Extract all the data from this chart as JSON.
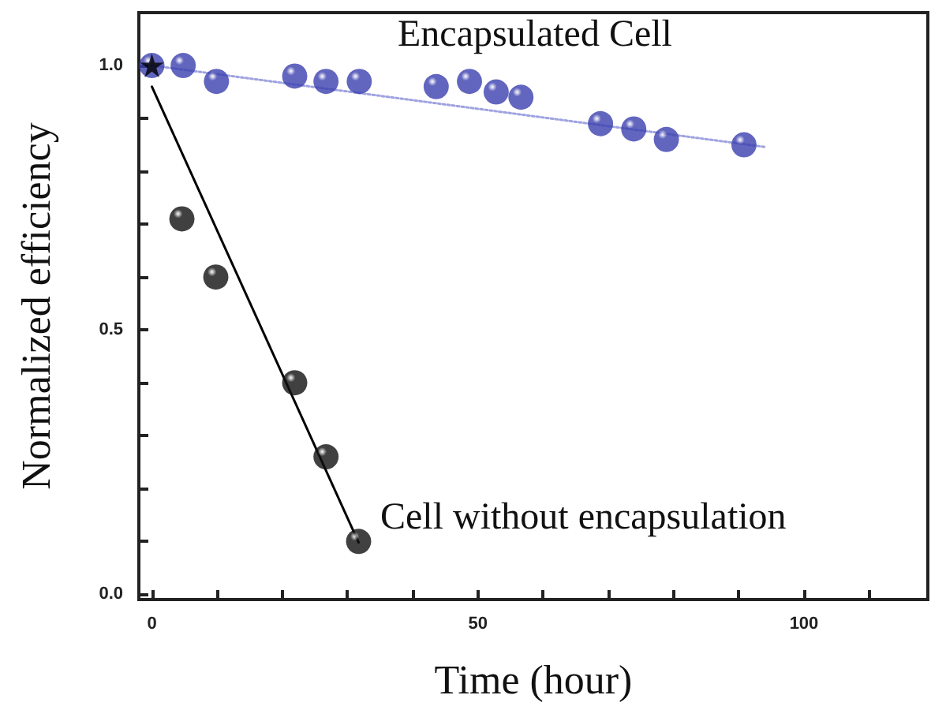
{
  "chart_data": {
    "type": "scatter",
    "xlabel": "Time (hour)",
    "ylabel": "Normalized efficiency",
    "xlim": [
      -2,
      119
    ],
    "ylim": [
      -0.01,
      1.1
    ],
    "xticks": [
      0,
      {
        "value": 10,
        "label": null
      },
      {
        "value": 20,
        "label": null
      },
      {
        "value": 30,
        "label": null
      },
      {
        "value": 40,
        "label": null
      },
      50,
      {
        "value": 60,
        "label": null
      },
      {
        "value": 70,
        "label": null
      },
      {
        "value": 80,
        "label": null
      },
      {
        "value": 90,
        "label": null
      },
      100,
      {
        "value": 110,
        "label": null
      }
    ],
    "yticks": [
      {
        "value": 0,
        "label": "0.0"
      },
      {
        "value": 0.1,
        "label": null
      },
      {
        "value": 0.2,
        "label": null
      },
      {
        "value": 0.3,
        "label": null
      },
      {
        "value": 0.4,
        "label": null
      },
      {
        "value": 0.5,
        "label": "0.5"
      },
      {
        "value": 0.6,
        "label": null
      },
      {
        "value": 0.7,
        "label": null
      },
      {
        "value": 0.8,
        "label": null
      },
      {
        "value": 0.9,
        "label": null
      },
      {
        "value": 1,
        "label": "1.0"
      }
    ],
    "grid": false,
    "series": [
      {
        "type": "line",
        "color": "#9fa3e0",
        "line_style": "dotted",
        "marker": "none",
        "x": [
          0,
          94
        ],
        "values": [
          1.0,
          0.846
        ]
      },
      {
        "type": "line",
        "color": "#000000",
        "line_style": "solid",
        "marker": "none",
        "x": [
          0,
          31.7
        ],
        "values": [
          0.96,
          0.098
        ]
      },
      {
        "color": "#3a3fae",
        "marker": "circle",
        "x": [
          0,
          4.8,
          9.9,
          21.9,
          26.7,
          31.8,
          43.6,
          48.7,
          52.8,
          56.6,
          68.8,
          73.9,
          78.9,
          90.8
        ],
        "values": [
          1.0,
          1.0,
          0.97,
          0.98,
          0.97,
          0.97,
          0.96,
          0.97,
          0.95,
          0.94,
          0.89,
          0.88,
          0.86,
          0.85
        ]
      },
      {
        "color": "#111111",
        "marker": "circle",
        "x": [
          4.6,
          9.8,
          21.9,
          26.7,
          31.7
        ],
        "values": [
          0.71,
          0.6,
          0.4,
          0.26,
          0.1
        ]
      },
      {
        "type": "scatter",
        "color": "#000000",
        "marker": "star",
        "x": [
          0
        ],
        "values": [
          1.0
        ]
      }
    ],
    "annotations": [
      "Encapsulated Cell",
      "Cell without encapsulation"
    ]
  }
}
